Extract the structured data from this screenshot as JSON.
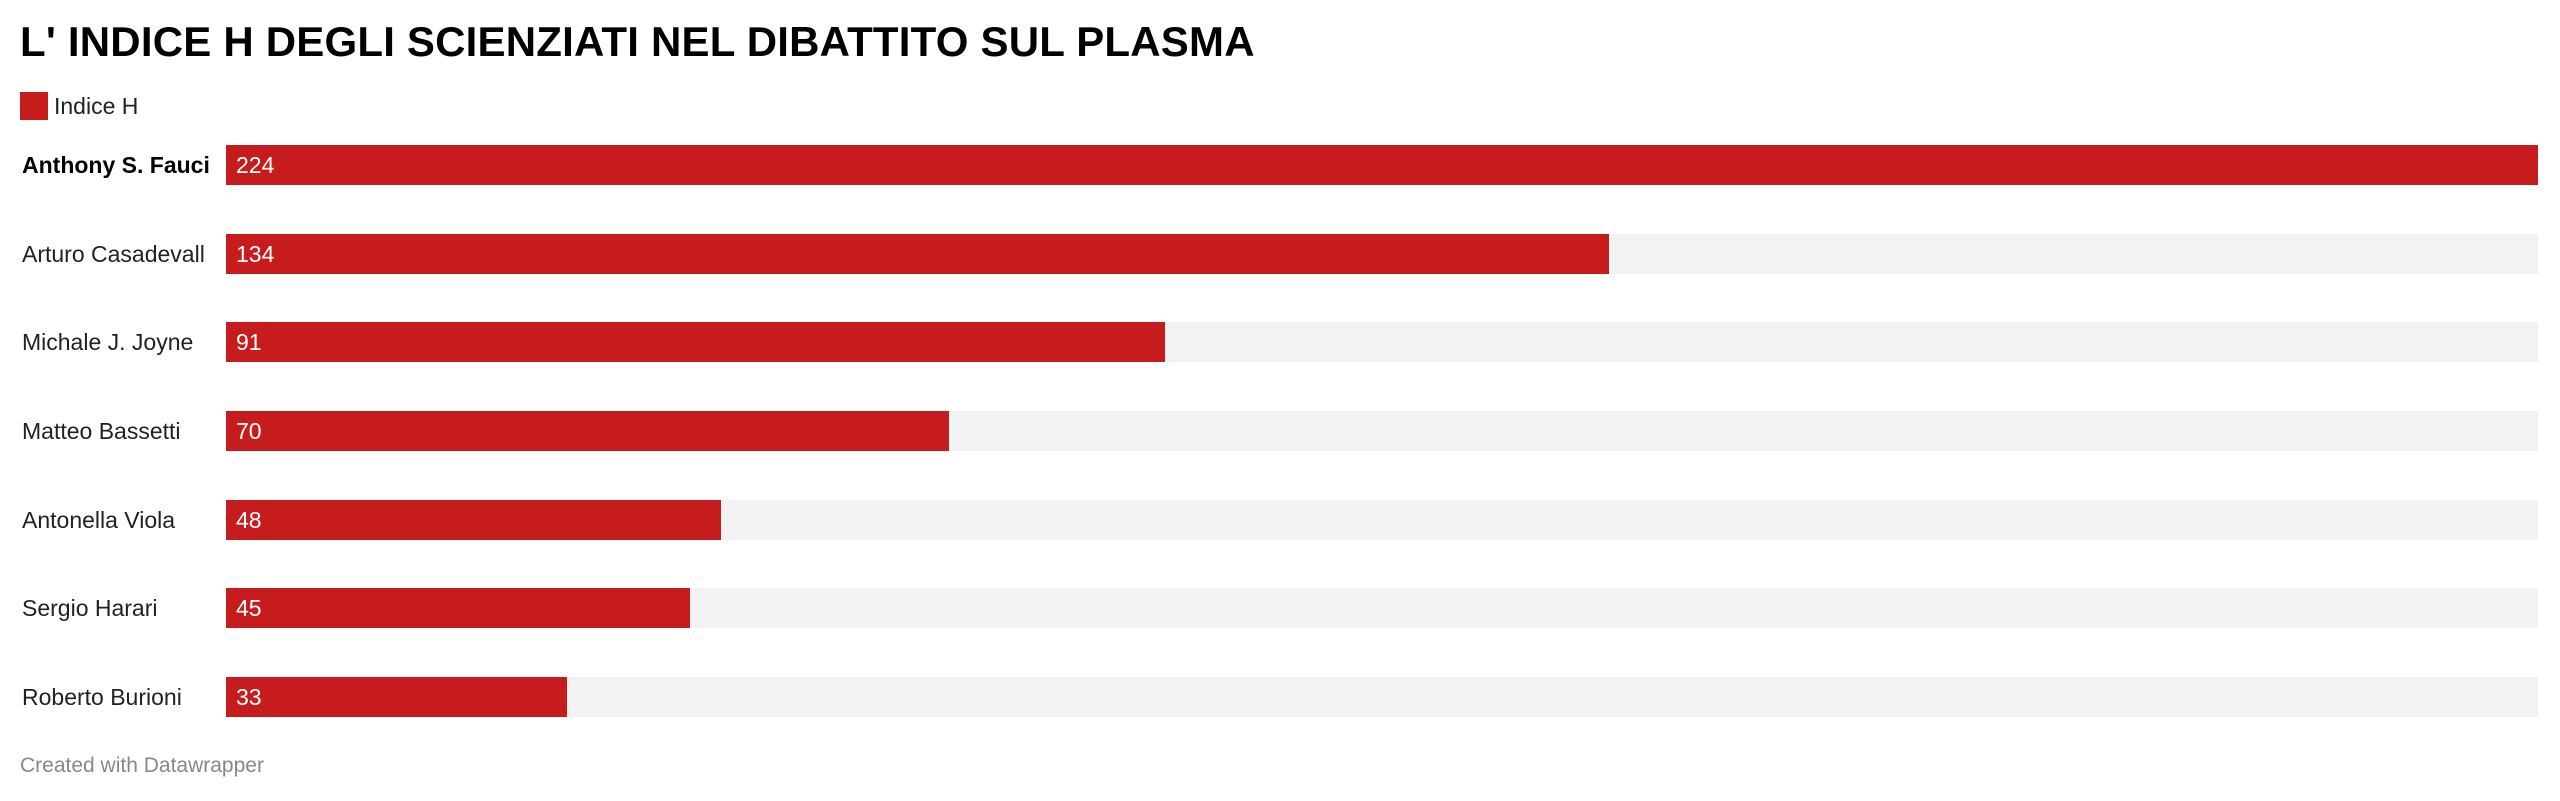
{
  "chart_data": {
    "type": "bar",
    "orientation": "horizontal",
    "title": "L' INDICE H DEGLI SCIENZIATI NEL DIBATTITO SUL PLASMA",
    "categories": [
      "Anthony S. Fauci",
      "Arturo Casadevall",
      "Michale J. Joyne",
      "Matteo Bassetti",
      "Antonella Viola",
      "Sergio Harari",
      "Roberto Burioni"
    ],
    "series": [
      {
        "name": "Indice H",
        "values": [
          224,
          134,
          91,
          70,
          48,
          45,
          33
        ]
      }
    ],
    "value_labels": [
      "224",
      "134",
      "91",
      "70",
      "48",
      "45",
      "33"
    ],
    "highlighted_category": "Anthony S. Fauci",
    "xlim": [
      0,
      224
    ],
    "grid": false,
    "legend_position": "top-left",
    "colors": {
      "bar": "#c61c1e",
      "track": "#f2f2f2"
    }
  },
  "footer": {
    "credit": "Created with Datawrapper"
  }
}
